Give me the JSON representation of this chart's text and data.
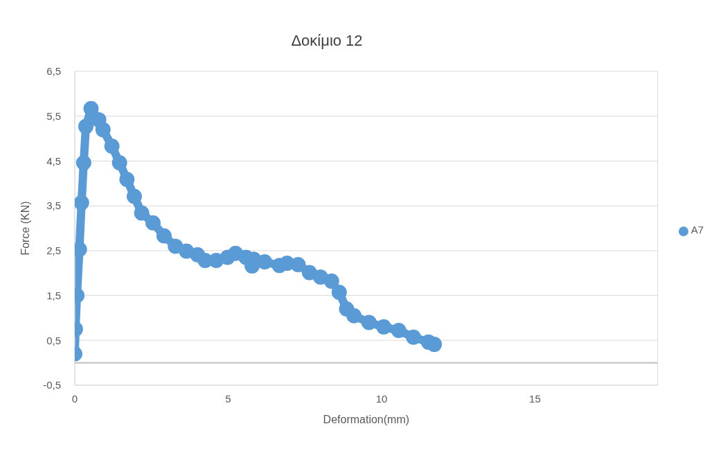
{
  "chart_data": {
    "type": "line",
    "title": "Δοκίμιο 12",
    "xlabel": "Deformation(mm)",
    "ylabel": "Force (KN)",
    "x": [
      0,
      0.02,
      0.07,
      0.15,
      0.22,
      0.29,
      0.36,
      0.53,
      0.78,
      0.92,
      1.21,
      1.46,
      1.7,
      1.94,
      2.18,
      2.55,
      2.91,
      3.28,
      3.64,
      4.0,
      4.25,
      4.61,
      4.98,
      5.24,
      5.58,
      5.78,
      5.83,
      6.19,
      6.67,
      6.92,
      7.28,
      7.65,
      8.01,
      8.37,
      8.62,
      8.86,
      9.1,
      9.59,
      10.07,
      10.56,
      11.04,
      11.53,
      11.72
    ],
    "series": [
      {
        "name": "A7",
        "color": "#5b9bd5",
        "values": [
          0.2,
          0.75,
          1.5,
          2.53,
          3.57,
          4.46,
          5.27,
          5.67,
          5.42,
          5.2,
          4.83,
          4.46,
          4.09,
          3.71,
          3.34,
          3.12,
          2.83,
          2.6,
          2.49,
          2.41,
          2.28,
          2.28,
          2.35,
          2.44,
          2.35,
          2.16,
          2.31,
          2.25,
          2.17,
          2.22,
          2.19,
          2.01,
          1.91,
          1.82,
          1.57,
          1.2,
          1.05,
          0.9,
          0.8,
          0.72,
          0.57,
          0.46,
          0.41
        ]
      }
    ],
    "xlim": [
      0,
      19
    ],
    "xticks": [
      0,
      5,
      10,
      15
    ],
    "ylim": [
      -0.5,
      6.5
    ],
    "yticks": [
      {
        "value": -0.5,
        "label": "-0,5"
      },
      {
        "value": 0.5,
        "label": "0,5"
      },
      {
        "value": 1.5,
        "label": "1,5"
      },
      {
        "value": 2.5,
        "label": "2,5"
      },
      {
        "value": 3.5,
        "label": "3,5"
      },
      {
        "value": 4.5,
        "label": "4,5"
      },
      {
        "value": 5.5,
        "label": "5,5"
      },
      {
        "value": 6.5,
        "label": "6,5"
      }
    ],
    "ref_lines": [
      {
        "axis": "y",
        "value": 0,
        "color": "#bfbfbf"
      }
    ],
    "grid": true,
    "legend": "right",
    "marker": "circle",
    "line_style": "solid"
  }
}
